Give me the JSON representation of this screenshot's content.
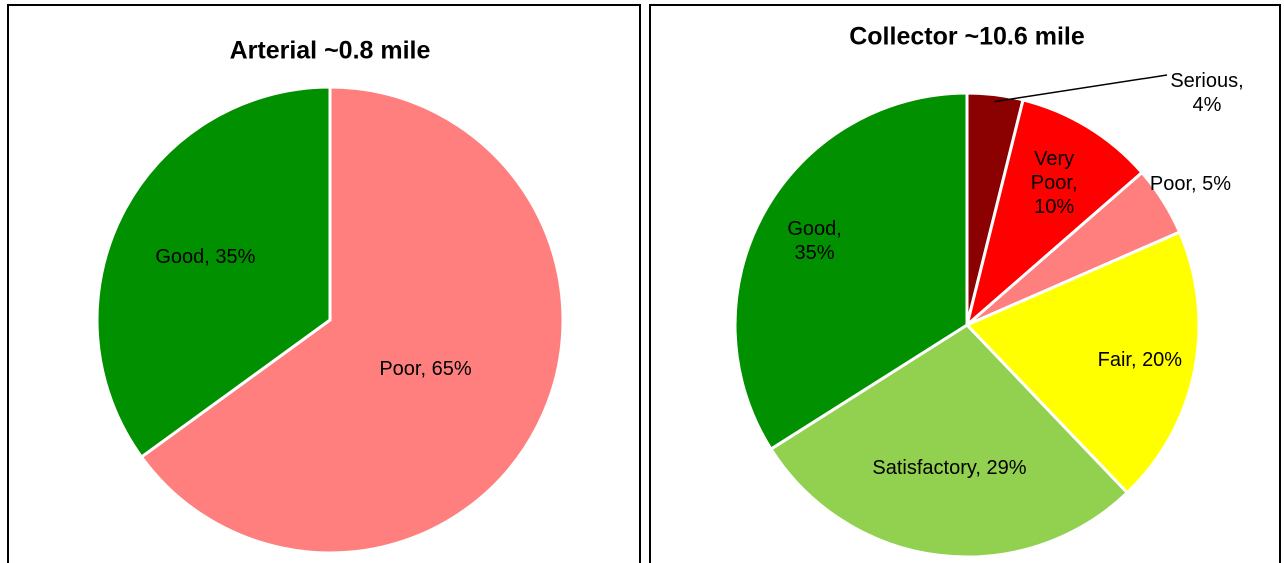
{
  "chart_data": [
    {
      "type": "pie",
      "title": "Arterial ~0.8 mile",
      "values": [
        65,
        35
      ],
      "value_labels": [
        "Poor, 65%",
        "Good, 35%"
      ],
      "colors": [
        "#ff7f7f",
        "#009000"
      ]
    },
    {
      "type": "pie",
      "title": "Collector ~10.6 mile",
      "values": [
        4,
        10,
        5,
        20,
        29,
        35
      ],
      "value_labels": [
        "Serious, 4%",
        "Very Poor, 10%",
        "Poor, 5%",
        "Fair, 20%",
        "Satisfactory, 29%",
        "Good, 35%"
      ],
      "colors": [
        "#8b0000",
        "#ff0000",
        "#ff7f7f",
        "#ffff00",
        "#92d050",
        "#009000"
      ]
    }
  ]
}
